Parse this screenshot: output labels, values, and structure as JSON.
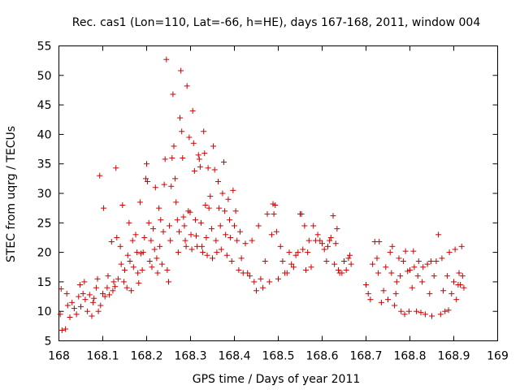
{
  "chart_data": {
    "type": "scatter",
    "title": "Rec. cas1 (Lon=110, Lat=-66, h=HE), days 167-168, 2011, window 004",
    "xlabel": "GPS time / Days of year 2011",
    "ylabel": "STEC from uqrg / TECUs",
    "xlim": [
      168,
      169
    ],
    "ylim": [
      5,
      55
    ],
    "xticks": [
      "168",
      "168.1",
      "168.2",
      "168.3",
      "168.4",
      "168.5",
      "168.6",
      "168.7",
      "168.8",
      "168.9",
      "169"
    ],
    "yticks": [
      "5",
      "10",
      "15",
      "20",
      "25",
      "30",
      "35",
      "40",
      "45",
      "50",
      "55"
    ],
    "grid": false,
    "marker": "plus",
    "color": "#cc0000",
    "series": [
      {
        "name": "STEC",
        "points": [
          [
            168.003,
            9.5
          ],
          [
            168.007,
            6.8
          ],
          [
            168.015,
            7.0
          ],
          [
            168.005,
            13.8
          ],
          [
            168.018,
            13.0
          ],
          [
            168.02,
            11.0
          ],
          [
            168.025,
            9.0
          ],
          [
            168.03,
            11.5
          ],
          [
            168.035,
            10.5
          ],
          [
            168.04,
            9.5
          ],
          [
            168.045,
            12.5
          ],
          [
            168.048,
            14.5
          ],
          [
            168.05,
            10.8
          ],
          [
            168.055,
            13.0
          ],
          [
            168.058,
            15.0
          ],
          [
            168.06,
            12.0
          ],
          [
            168.065,
            10.0
          ],
          [
            168.07,
            12.8
          ],
          [
            168.075,
            9.2
          ],
          [
            168.078,
            11.5
          ],
          [
            168.08,
            12.2
          ],
          [
            168.085,
            14.0
          ],
          [
            168.088,
            15.5
          ],
          [
            168.09,
            10.0
          ],
          [
            168.093,
            33.0
          ],
          [
            168.095,
            11.0
          ],
          [
            168.1,
            13.0
          ],
          [
            168.102,
            27.5
          ],
          [
            168.105,
            12.5
          ],
          [
            168.11,
            14.0
          ],
          [
            168.112,
            16.0
          ],
          [
            168.115,
            12.8
          ],
          [
            168.12,
            21.8
          ],
          [
            168.123,
            13.5
          ],
          [
            168.125,
            15.0
          ],
          [
            168.128,
            14.2
          ],
          [
            168.13,
            34.3
          ],
          [
            168.132,
            22.5
          ],
          [
            168.135,
            15.5
          ],
          [
            168.14,
            21.0
          ],
          [
            168.142,
            18.0
          ],
          [
            168.145,
            28.0
          ],
          [
            168.148,
            15.0
          ],
          [
            168.15,
            17.0
          ],
          [
            168.155,
            14.0
          ],
          [
            168.157,
            19.5
          ],
          [
            168.16,
            25.0
          ],
          [
            168.162,
            18.5
          ],
          [
            168.165,
            13.5
          ],
          [
            168.168,
            22.0
          ],
          [
            168.17,
            17.5
          ],
          [
            168.175,
            23.0
          ],
          [
            168.178,
            20.0
          ],
          [
            168.18,
            16.5
          ],
          [
            168.182,
            14.8
          ],
          [
            168.185,
            28.5
          ],
          [
            168.187,
            19.8
          ],
          [
            168.19,
            17.0
          ],
          [
            168.192,
            20.0
          ],
          [
            168.195,
            22.5
          ],
          [
            168.198,
            32.5
          ],
          [
            168.2,
            35.0
          ],
          [
            168.202,
            32.0
          ],
          [
            168.205,
            25.0
          ],
          [
            168.207,
            18.5
          ],
          [
            168.21,
            22.0
          ],
          [
            168.212,
            17.5
          ],
          [
            168.215,
            24.0
          ],
          [
            168.218,
            20.5
          ],
          [
            168.22,
            31.0
          ],
          [
            168.223,
            19.0
          ],
          [
            168.225,
            16.5
          ],
          [
            168.228,
            27.5
          ],
          [
            168.23,
            21.0
          ],
          [
            168.232,
            25.5
          ],
          [
            168.235,
            18.0
          ],
          [
            168.238,
            23.5
          ],
          [
            168.24,
            31.5
          ],
          [
            168.242,
            35.8
          ],
          [
            168.245,
            52.7
          ],
          [
            168.247,
            17.0
          ],
          [
            168.25,
            15.0
          ],
          [
            168.252,
            24.5
          ],
          [
            168.254,
            22.0
          ],
          [
            168.256,
            31.2
          ],
          [
            168.258,
            36.0
          ],
          [
            168.26,
            46.8
          ],
          [
            168.262,
            38.0
          ],
          [
            168.265,
            32.5
          ],
          [
            168.267,
            28.5
          ],
          [
            168.27,
            25.5
          ],
          [
            168.272,
            20.0
          ],
          [
            168.274,
            23.5
          ],
          [
            168.276,
            42.8
          ],
          [
            168.278,
            50.8
          ],
          [
            168.28,
            40.5
          ],
          [
            168.282,
            36.0
          ],
          [
            168.284,
            26.0
          ],
          [
            168.286,
            24.5
          ],
          [
            168.288,
            22.0
          ],
          [
            168.29,
            21.0
          ],
          [
            168.292,
            48.2
          ],
          [
            168.295,
            27.0
          ],
          [
            168.297,
            39.5
          ],
          [
            168.299,
            26.8
          ],
          [
            168.301,
            23.0
          ],
          [
            168.303,
            20.5
          ],
          [
            168.305,
            44.0
          ],
          [
            168.307,
            38.5
          ],
          [
            168.309,
            33.8
          ],
          [
            168.311,
            25.5
          ],
          [
            168.313,
            22.8
          ],
          [
            168.315,
            21.0
          ],
          [
            168.318,
            36.5
          ],
          [
            168.32,
            35.8
          ],
          [
            168.322,
            34.5
          ],
          [
            168.324,
            25.0
          ],
          [
            168.326,
            21.0
          ],
          [
            168.328,
            20.0
          ],
          [
            168.33,
            40.5
          ],
          [
            168.332,
            36.8
          ],
          [
            168.334,
            28.0
          ],
          [
            168.336,
            22.5
          ],
          [
            168.338,
            19.5
          ],
          [
            168.34,
            34.3
          ],
          [
            168.342,
            27.5
          ],
          [
            168.345,
            29.5
          ],
          [
            168.348,
            24.0
          ],
          [
            168.35,
            19.0
          ],
          [
            168.352,
            38.0
          ],
          [
            168.355,
            34.0
          ],
          [
            168.358,
            22.0
          ],
          [
            168.36,
            20.0
          ],
          [
            168.363,
            32.0
          ],
          [
            168.365,
            27.5
          ],
          [
            168.368,
            24.5
          ],
          [
            168.37,
            20.5
          ],
          [
            168.373,
            30.0
          ],
          [
            168.376,
            35.3
          ],
          [
            168.378,
            27.0
          ],
          [
            168.38,
            23.0
          ],
          [
            168.383,
            19.5
          ],
          [
            168.386,
            29.0
          ],
          [
            168.389,
            25.5
          ],
          [
            168.391,
            22.5
          ],
          [
            168.394,
            18.5
          ],
          [
            168.397,
            30.5
          ],
          [
            168.4,
            24.5
          ],
          [
            168.403,
            27.0
          ],
          [
            168.406,
            22.0
          ],
          [
            168.41,
            17.0
          ],
          [
            168.413,
            23.5
          ],
          [
            168.416,
            19.0
          ],
          [
            168.42,
            16.5
          ],
          [
            168.425,
            21.5
          ],
          [
            168.43,
            16.5
          ],
          [
            168.435,
            16.0
          ],
          [
            168.44,
            22.0
          ],
          [
            168.445,
            15.0
          ],
          [
            168.45,
            13.5
          ],
          [
            168.455,
            24.5
          ],
          [
            168.46,
            15.5
          ],
          [
            168.465,
            14.0
          ],
          [
            168.47,
            18.5
          ],
          [
            168.475,
            26.5
          ],
          [
            168.48,
            15.0
          ],
          [
            168.485,
            23.0
          ],
          [
            168.488,
            28.2
          ],
          [
            168.49,
            26.5
          ],
          [
            168.493,
            28.0
          ],
          [
            168.496,
            23.5
          ],
          [
            168.5,
            15.5
          ],
          [
            168.505,
            21.0
          ],
          [
            168.51,
            18.5
          ],
          [
            168.515,
            16.5
          ],
          [
            168.52,
            16.5
          ],
          [
            168.525,
            20.0
          ],
          [
            168.53,
            18.0
          ],
          [
            168.535,
            17.5
          ],
          [
            168.54,
            19.5
          ],
          [
            168.545,
            20.0
          ],
          [
            168.55,
            26.5
          ],
          [
            168.553,
            26.5
          ],
          [
            168.556,
            20.5
          ],
          [
            168.56,
            24.5
          ],
          [
            168.563,
            17.0
          ],
          [
            168.567,
            20.0
          ],
          [
            168.57,
            22.0
          ],
          [
            168.575,
            17.5
          ],
          [
            168.58,
            24.5
          ],
          [
            168.585,
            22.0
          ],
          [
            168.59,
            23.0
          ],
          [
            168.595,
            22.0
          ],
          [
            168.6,
            21.5
          ],
          [
            168.605,
            20.5
          ],
          [
            168.61,
            18.5
          ],
          [
            168.613,
            21.0
          ],
          [
            168.617,
            22.0
          ],
          [
            168.62,
            22.5
          ],
          [
            168.625,
            26.2
          ],
          [
            168.628,
            18.0
          ],
          [
            168.631,
            21.5
          ],
          [
            168.634,
            24.0
          ],
          [
            168.637,
            17.0
          ],
          [
            168.64,
            16.5
          ],
          [
            168.645,
            16.5
          ],
          [
            168.65,
            18.5
          ],
          [
            168.655,
            17.0
          ],
          [
            168.66,
            19.0
          ],
          [
            168.663,
            19.5
          ],
          [
            168.666,
            18.0
          ],
          [
            168.7,
            14.5
          ],
          [
            168.705,
            13.0
          ],
          [
            168.71,
            12.0
          ],
          [
            168.715,
            18.0
          ],
          [
            168.72,
            21.8
          ],
          [
            168.725,
            19.0
          ],
          [
            168.728,
            16.5
          ],
          [
            168.73,
            21.8
          ],
          [
            168.735,
            11.5
          ],
          [
            168.74,
            13.5
          ],
          [
            168.745,
            17.5
          ],
          [
            168.75,
            12.0
          ],
          [
            168.755,
            20.0
          ],
          [
            168.758,
            16.5
          ],
          [
            168.76,
            21.0
          ],
          [
            168.765,
            11.0
          ],
          [
            168.768,
            13.0
          ],
          [
            168.77,
            15.0
          ],
          [
            168.775,
            19.0
          ],
          [
            168.778,
            16.0
          ],
          [
            168.78,
            10.0
          ],
          [
            168.785,
            18.5
          ],
          [
            168.788,
            9.5
          ],
          [
            168.79,
            20.2
          ],
          [
            168.795,
            16.8
          ],
          [
            168.798,
            10.0
          ],
          [
            168.8,
            17.0
          ],
          [
            168.805,
            14.0
          ],
          [
            168.808,
            20.2
          ],
          [
            168.81,
            17.5
          ],
          [
            168.815,
            10.0
          ],
          [
            168.818,
            16.0
          ],
          [
            168.82,
            18.5
          ],
          [
            168.825,
            9.8
          ],
          [
            168.828,
            15.0
          ],
          [
            168.83,
            17.5
          ],
          [
            168.835,
            9.5
          ],
          [
            168.84,
            18.0
          ],
          [
            168.845,
            13.0
          ],
          [
            168.848,
            18.5
          ],
          [
            168.85,
            9.2
          ],
          [
            168.855,
            16.0
          ],
          [
            168.86,
            18.5
          ],
          [
            168.865,
            23.0
          ],
          [
            168.87,
            9.5
          ],
          [
            168.873,
            19.0
          ],
          [
            168.876,
            13.5
          ],
          [
            168.88,
            10.0
          ],
          [
            168.885,
            16.0
          ],
          [
            168.888,
            10.2
          ],
          [
            168.89,
            20.0
          ],
          [
            168.895,
            13.0
          ],
          [
            168.9,
            15.0
          ],
          [
            168.903,
            20.5
          ],
          [
            168.906,
            12.0
          ],
          [
            168.91,
            14.5
          ],
          [
            168.912,
            16.5
          ],
          [
            168.915,
            14.5
          ],
          [
            168.918,
            21.0
          ],
          [
            168.92,
            16.0
          ],
          [
            168.923,
            14.0
          ]
        ]
      }
    ]
  }
}
